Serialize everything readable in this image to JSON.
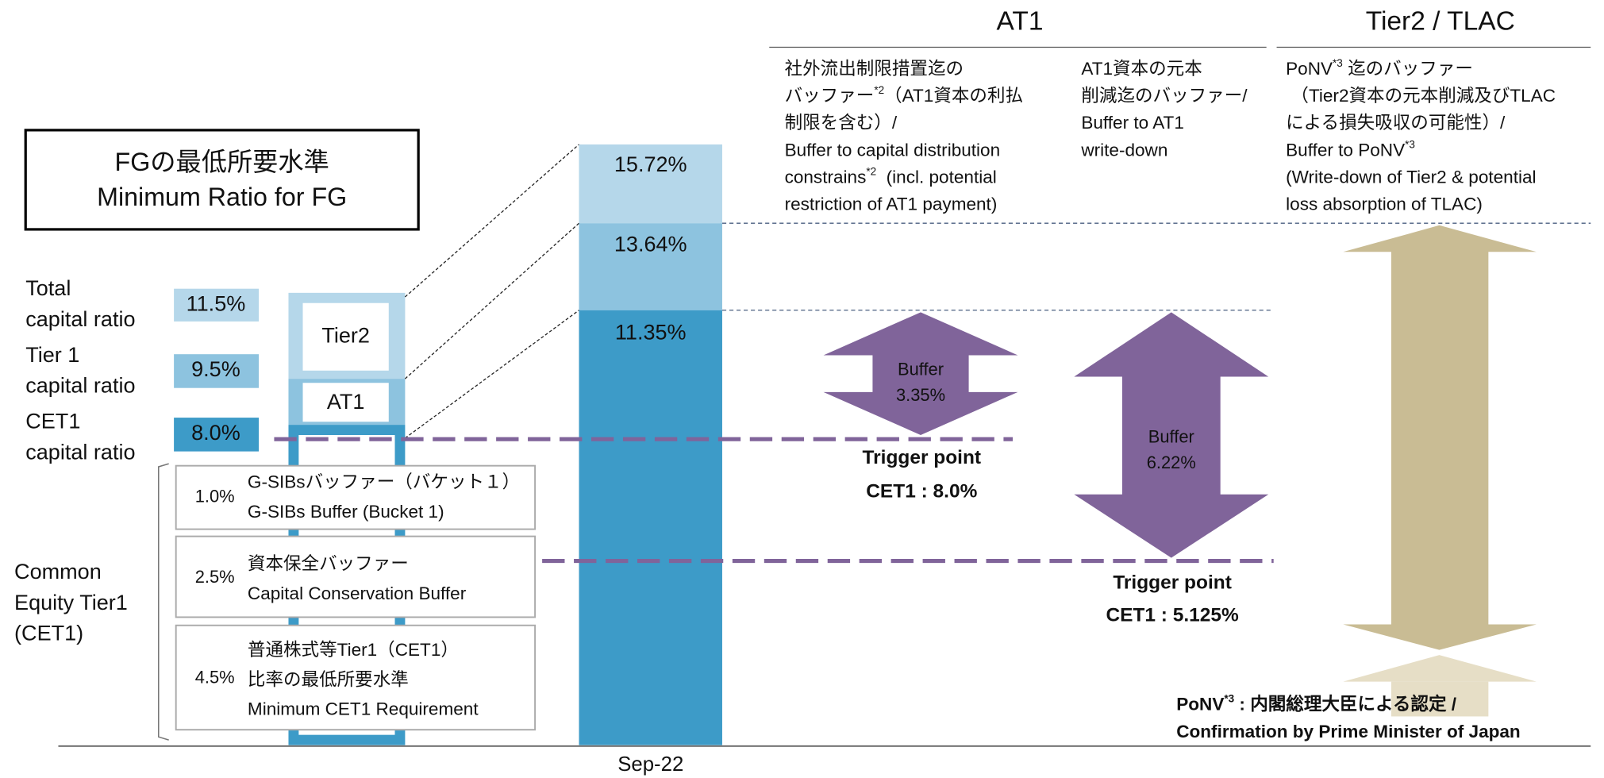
{
  "header": {
    "at1": "AT1",
    "tier2": "Tier2 / TLAC"
  },
  "minimum_box": {
    "lines": [
      "FGの最低所要水準",
      "Minimum Ratio for FG"
    ]
  },
  "ratios": [
    {
      "label": [
        "Total",
        "capital ratio"
      ],
      "value": "11.5%"
    },
    {
      "label": [
        "Tier 1",
        "capital ratio"
      ],
      "value": "9.5%"
    },
    {
      "label": [
        "CET1",
        "capital ratio"
      ],
      "value": "8.0%"
    }
  ],
  "min_column": {
    "tier2": "Tier2",
    "at1": "AT1"
  },
  "cet1_components": [
    {
      "pct": "1.0%",
      "lines": [
        "G-SIBsバッファー（バケット１）",
        "G-SIBs Buffer (Bucket 1)"
      ]
    },
    {
      "pct": "2.5%",
      "lines": [
        "資本保全バッファー",
        "Capital Conservation Buffer"
      ]
    },
    {
      "pct": "4.5%",
      "lines": [
        "普通株式等Tier1（CET1）",
        "比率の最低所要水準",
        "Minimum CET1 Requirement"
      ]
    }
  ],
  "cet1_label": [
    "Common",
    "Equity Tier1",
    "(CET1)"
  ],
  "actual_column": {
    "period": "Sep-22",
    "segments": [
      "15.72%",
      "13.64%",
      "11.35%"
    ]
  },
  "at1_notes": [
    [
      "社外流出制限措置迄の",
      [
        "バッファー",
        {
          "sup": "*2"
        },
        "（AT1資本の利払"
      ],
      "制限を含む）/",
      "Buffer to capital distribution",
      [
        "constrains",
        {
          "sup": "*2"
        },
        "  (incl. potential"
      ],
      "restriction of AT1 payment)"
    ],
    [
      "AT1資本の元本",
      "削減迄のバッファー/",
      "Buffer to AT1",
      "write-down"
    ]
  ],
  "tier2_note": [
    [
      "PoNV",
      {
        "sup": "*3"
      },
      " 迄のバッファー"
    ],
    " （Tier2資本の元本削減及びTLAC",
    "による損失吸収の可能性）/",
    [
      "Buffer to PoNV",
      {
        "sup": "*3"
      }
    ],
    "(Write-down of Tier2 & potential",
    "loss absorption of TLAC)"
  ],
  "buffers": [
    [
      "Buffer",
      "3.35%"
    ],
    [
      "Buffer",
      "6.22%"
    ]
  ],
  "triggers": [
    [
      "Trigger point",
      "CET1 : 8.0%"
    ],
    [
      "Trigger point",
      "CET1 : 5.125%"
    ]
  ],
  "ponv": [
    [
      "PoNV",
      {
        "sup": "*3"
      },
      " : 内閣総理大臣による認定 /"
    ],
    "Confirmation by Prime Minister of Japan"
  ]
}
